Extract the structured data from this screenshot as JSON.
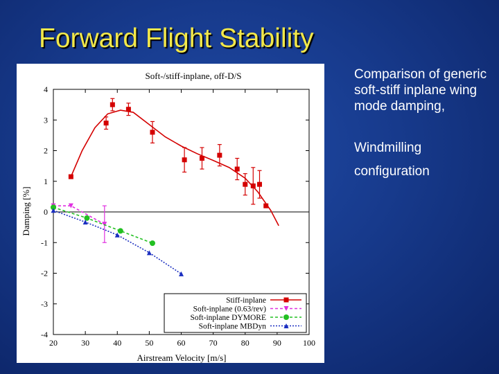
{
  "slide": {
    "title": "Forward Flight Stability",
    "bullets": [
      "Comparison of generic soft-stiff inplane wing mode damping,",
      "Windmilling configuration"
    ]
  },
  "chart_data": {
    "type": "line",
    "title": "Soft-/stiff-inplane, off-D/S",
    "xlabel": "Airstream Velocity [m/s]",
    "ylabel": "Damping [%]",
    "xlim": [
      20,
      100
    ],
    "ylim": [
      -4,
      4
    ],
    "xticks": [
      20,
      30,
      40,
      50,
      60,
      70,
      80,
      90,
      100
    ],
    "yticks": [
      -4,
      -3,
      -2,
      -1,
      0,
      1,
      2,
      3,
      4
    ],
    "legend_position": "bottom-right",
    "zero_line": true,
    "series": [
      {
        "name": "Stiff-inplane",
        "color": "#d40000",
        "marker": "square",
        "line": "solid",
        "points": [
          {
            "x": 25.5,
            "y": 1.15
          },
          {
            "x": 36.5,
            "y": 2.9,
            "err": 0.2
          },
          {
            "x": 38.5,
            "y": 3.5,
            "err": 0.2
          },
          {
            "x": 43.5,
            "y": 3.35,
            "err": 0.2
          },
          {
            "x": 51,
            "y": 2.6,
            "err": 0.35
          },
          {
            "x": 61,
            "y": 1.7,
            "err": 0.4
          },
          {
            "x": 66.5,
            "y": 1.75,
            "err": 0.35
          },
          {
            "x": 72,
            "y": 1.85,
            "err": 0.35
          },
          {
            "x": 77.5,
            "y": 1.4,
            "err": 0.35
          },
          {
            "x": 80,
            "y": 0.9,
            "err": 0.35
          },
          {
            "x": 82.5,
            "y": 0.85,
            "err": 0.6
          },
          {
            "x": 84.5,
            "y": 0.9,
            "err": 0.45
          },
          {
            "x": 86.5,
            "y": 0.2
          }
        ],
        "fit": [
          [
            25.5,
            1.15
          ],
          [
            29,
            2.0
          ],
          [
            33,
            2.75
          ],
          [
            37,
            3.2
          ],
          [
            41,
            3.32
          ],
          [
            45,
            3.25
          ],
          [
            50,
            2.85
          ],
          [
            55,
            2.45
          ],
          [
            60,
            2.15
          ],
          [
            65,
            1.9
          ],
          [
            70,
            1.68
          ],
          [
            75,
            1.45
          ],
          [
            80,
            1.1
          ],
          [
            84,
            0.65
          ],
          [
            88,
            0.05
          ],
          [
            90.5,
            -0.45
          ]
        ]
      },
      {
        "name": "Soft-inplane (0.63/rev)",
        "color": "#e030e0",
        "marker": "triangle-down",
        "line": "dashed",
        "points": [
          {
            "x": 20,
            "y": 0.2
          },
          {
            "x": 25.5,
            "y": 0.2
          },
          {
            "x": 36,
            "y": -0.4,
            "err": 0.6
          }
        ]
      },
      {
        "name": "Soft-inplane DYMORE",
        "color": "#22c022",
        "marker": "circle",
        "line": "dashed",
        "points": [
          {
            "x": 20,
            "y": 0.15
          },
          {
            "x": 30.5,
            "y": -0.2
          },
          {
            "x": 41,
            "y": -0.62
          },
          {
            "x": 51,
            "y": -1.02
          }
        ]
      },
      {
        "name": "Soft-inplane MBDyn",
        "color": "#1a2ec0",
        "marker": "triangle-up",
        "line": "dotted",
        "points": [
          {
            "x": 20,
            "y": 0.05
          },
          {
            "x": 30,
            "y": -0.33
          },
          {
            "x": 40,
            "y": -0.75
          },
          {
            "x": 50,
            "y": -1.33
          },
          {
            "x": 60,
            "y": -2.02
          }
        ]
      }
    ]
  }
}
